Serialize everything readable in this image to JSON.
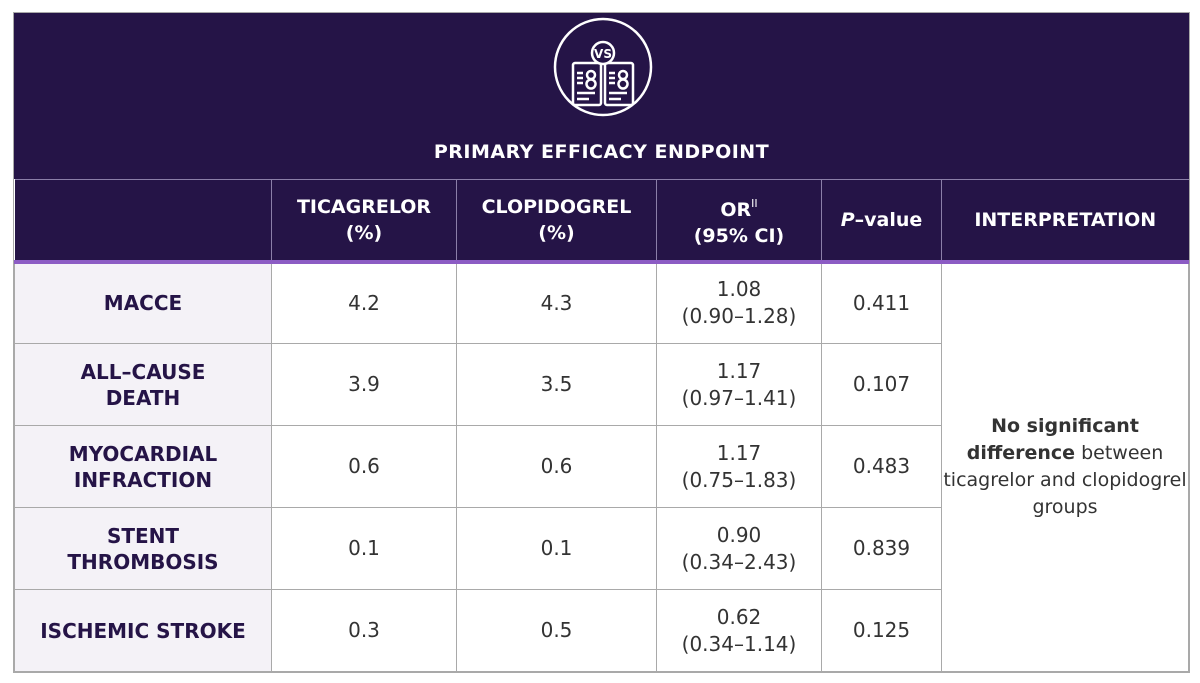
{
  "icon": "versus-documents-icon",
  "title": "PRIMARY EFFICACY ENDPOINT",
  "colors": {
    "header_bg": "#251447",
    "accent_line": "#8c5cc4",
    "label_bg": "#f4f2f7",
    "label_text": "#251447"
  },
  "headers": {
    "ticagrelor": [
      "TICAGRELOR",
      "(%)"
    ],
    "clopidogrel": [
      "CLOPIDOGREL",
      "(%)"
    ],
    "or": {
      "main": "OR",
      "sup": "II",
      "sub": "(95% CI)"
    },
    "pvalue": {
      "italic": "P",
      "rest": "–value"
    },
    "interpretation": "INTERPRETATION"
  },
  "rows": [
    {
      "label": [
        "MACCE",
        ""
      ],
      "ticagrelor": "4.2",
      "clopidogrel": "4.3",
      "or": "1.08",
      "ci": "(0.90–1.28)",
      "p": "0.411"
    },
    {
      "label": [
        "ALL–CAUSE",
        "DEATH"
      ],
      "ticagrelor": "3.9",
      "clopidogrel": "3.5",
      "or": "1.17",
      "ci": "(0.97–1.41)",
      "p": "0.107"
    },
    {
      "label": [
        "MYOCARDIAL",
        "INFRACTION"
      ],
      "ticagrelor": "0.6",
      "clopidogrel": "0.6",
      "or": "1.17",
      "ci": "(0.75–1.83)",
      "p": "0.483"
    },
    {
      "label": [
        "STENT",
        "THROMBOSIS"
      ],
      "ticagrelor": "0.1",
      "clopidogrel": "0.1",
      "or": "0.90",
      "ci": "(0.34–2.43)",
      "p": "0.839"
    },
    {
      "label": [
        "ISCHEMIC STROKE",
        ""
      ],
      "ticagrelor": "0.3",
      "clopidogrel": "0.5",
      "or": "0.62",
      "ci": "(0.34–1.14)",
      "p": "0.125"
    }
  ],
  "interpretation": {
    "bold": "No significant difference",
    "rest": " between ticagrelor and clopidogrel groups"
  }
}
